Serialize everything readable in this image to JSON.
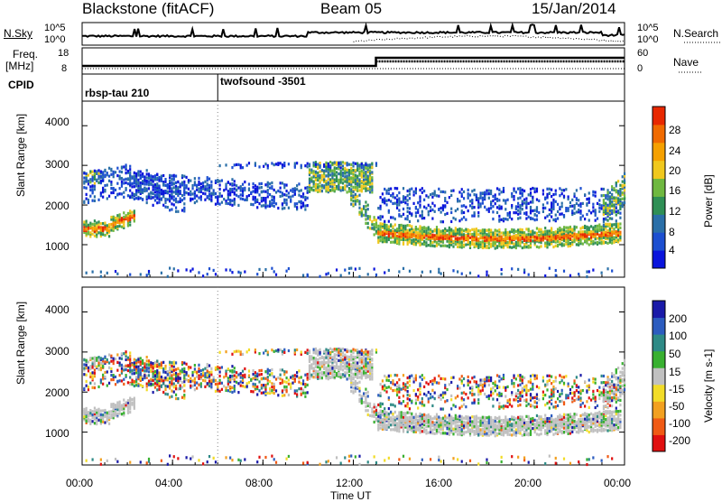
{
  "chart_data": {
    "type": "heatmap",
    "title": {
      "left": "Blackstone (fitACF)",
      "center": "Beam 05",
      "right": "15/Jan/2014"
    },
    "xlabel": "Time UT",
    "x_ticks": [
      "00:00",
      "04:00",
      "08:00",
      "12:00",
      "16:00",
      "20:00",
      "00:00"
    ],
    "xlim": [
      "00:00",
      "24:00"
    ],
    "top_panels": {
      "nsky": {
        "label": "N.Sky",
        "ticks": [
          "10^5",
          "10^0"
        ]
      },
      "nsearch": {
        "label": "N.Search",
        "ticks": [
          "10^5",
          "10^0"
        ]
      },
      "freq": {
        "label_line1": "Freq.",
        "label_line2": "[MHz]",
        "ticks": [
          "18",
          "8"
        ]
      },
      "nave": {
        "label": "Nave",
        "ticks": [
          "60",
          "0"
        ]
      },
      "cpid": {
        "label": "CPID",
        "segments": [
          {
            "name": "rbsp-tau 210",
            "start_hour": 0
          },
          {
            "name": "twofsound -3501",
            "start_hour": 6
          }
        ]
      }
    },
    "panels": [
      {
        "ylabel": "Slant Range [km]",
        "y_ticks": [
          "1000",
          "2000",
          "3000",
          "4000"
        ],
        "ylim": [
          180,
          4620
        ],
        "colorbar": {
          "label": "Power [dB]",
          "ticks": [
            "28",
            "24",
            "20",
            "16",
            "12",
            "8",
            "4"
          ],
          "colors": [
            "#0a14dc",
            "#1c4fd0",
            "#2a6fa8",
            "#2f8f55",
            "#6fb840",
            "#f0c81e",
            "#f5a000",
            "#f06a00",
            "#e82800"
          ]
        }
      },
      {
        "ylabel": "Slant Range [km]",
        "y_ticks": [
          "1000",
          "2000",
          "3000",
          "4000"
        ],
        "ylim": [
          180,
          4620
        ],
        "colorbar": {
          "label": "Velocity [m s-1]",
          "ticks": [
            "200",
            "100",
            "50",
            "15",
            "-15",
            "-50",
            "-100",
            "-200"
          ],
          "colors": [
            "#1a1aa8",
            "#2c5cbf",
            "#2e8a86",
            "#38b030",
            "#c0c0c0",
            "#f2dc28",
            "#f2a020",
            "#f05a14",
            "#e01010"
          ]
        }
      }
    ],
    "features": {
      "band_main_hours": [
        13,
        23.8
      ],
      "band_main_range_km": [
        1000,
        1700
      ],
      "band_early_hours": [
        0,
        2
      ],
      "band_early_range_km": [
        1300,
        1800
      ],
      "upper_layer_hours": [
        10,
        12.8
      ],
      "upper_layer_range_km": [
        2100,
        3100
      ]
    }
  }
}
